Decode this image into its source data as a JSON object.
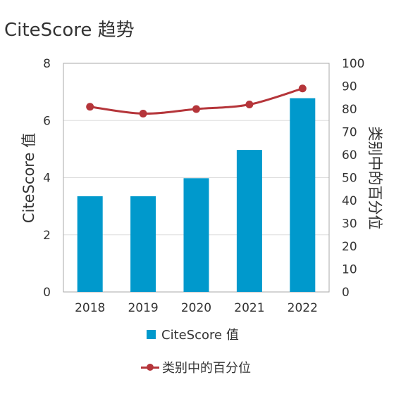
{
  "header": {
    "title": "CiteScore 趋势"
  },
  "chart_data": {
    "type": "bar",
    "categories": [
      "2018",
      "2019",
      "2020",
      "2021",
      "2022"
    ],
    "series": [
      {
        "name": "CiteScore 值",
        "kind": "bar",
        "axis": "left",
        "values": [
          3.35,
          3.35,
          3.98,
          4.97,
          6.78
        ],
        "color": "#0099cc"
      },
      {
        "name": "类别中的百分位",
        "kind": "line",
        "axis": "right",
        "values": [
          81,
          78,
          80,
          82,
          89
        ],
        "color": "#b5353a"
      }
    ],
    "ylabel": "CiteScore 值",
    "y2label": "类别中的百分位",
    "ylim": [
      0,
      8
    ],
    "y2lim": [
      0,
      100
    ],
    "yticks": [
      "0",
      "2",
      "4",
      "6",
      "8"
    ],
    "y2ticks": [
      "0",
      "10",
      "20",
      "30",
      "40",
      "50",
      "60",
      "70",
      "80",
      "90",
      "100"
    ],
    "grid": true,
    "legend": "bottom"
  }
}
